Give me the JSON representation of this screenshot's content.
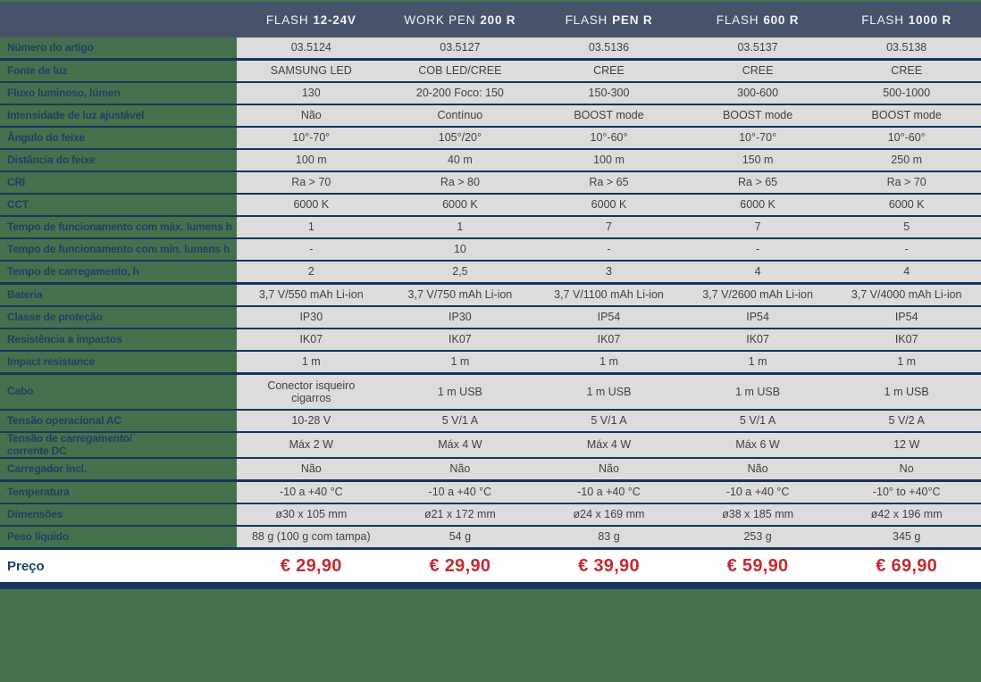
{
  "colors": {
    "page_background": "#47704D",
    "header_background": "#46536B",
    "header_text": "#F4F4F4",
    "row_label_text": "#1C4066",
    "separator_line": "#16355C",
    "cell_background": "#DCDCDC",
    "cell_text": "#404040",
    "price_background": "#FFFFFF",
    "price_text": "#C32B30"
  },
  "table": {
    "products": [
      {
        "brand": "FLASH",
        "model": "12-24V"
      },
      {
        "brand": "WORK PEN",
        "model": "200 R"
      },
      {
        "brand": "FLASH",
        "model": "PEN R"
      },
      {
        "brand": "FLASH",
        "model": "600 R"
      },
      {
        "brand": "FLASH",
        "model": "1000 R"
      }
    ],
    "rows": [
      {
        "label": "Número do artigo",
        "values": [
          "03.5124",
          "03.5127",
          "03.5136",
          "03.5137",
          "03.5138"
        ],
        "section_end": true
      },
      {
        "label": "Fonte de luz",
        "values": [
          "SAMSUNG LED",
          "COB LED/CREE",
          "CREE",
          "CREE",
          "CREE"
        ]
      },
      {
        "label": "Fluxo luminoso, lúmen",
        "values": [
          "130",
          "20-200 Foco: 150",
          "150-300",
          "300-600",
          "500-1000"
        ]
      },
      {
        "label": "Intensidade de luz ajustável",
        "values": [
          "Não",
          "Contínuo",
          "BOOST mode",
          "BOOST mode",
          "BOOST mode"
        ]
      },
      {
        "label": "Ângulo do feixe",
        "values": [
          "10°-70°",
          "105°/20°",
          "10°-60°",
          "10°-70°",
          "10°-60°"
        ]
      },
      {
        "label": "Distância do feixe",
        "values": [
          "100 m",
          "40 m",
          "100 m",
          "150 m",
          "250 m"
        ]
      },
      {
        "label": "CRI",
        "values": [
          "Ra > 70",
          "Ra > 80",
          "Ra > 65",
          "Ra > 65",
          "Ra > 70"
        ]
      },
      {
        "label": "CCT",
        "values": [
          "6000 K",
          "6000 K",
          "6000 K",
          "6000 K",
          "6000 K"
        ]
      },
      {
        "label": "Tempo de funcionamento com máx. lumens h",
        "values": [
          "1",
          "1",
          "7",
          "7",
          "5"
        ]
      },
      {
        "label": "Tempo de funcionamento com mín. lumens h",
        "values": [
          "-",
          "10",
          "-",
          "-",
          "-"
        ]
      },
      {
        "label": "Tempo de carregamento, h",
        "values": [
          "2",
          "2,5",
          "3",
          "4",
          "4"
        ],
        "section_end": true
      },
      {
        "label": "Bateria",
        "values": [
          "3,7 V/550 mAh Li-ion",
          "3,7 V/750 mAh Li-ion",
          "3,7 V/1100 mAh Li-ion",
          "3,7 V/2600 mAh Li-ion",
          "3,7 V/4000 mAh Li-ion"
        ]
      },
      {
        "label": "Classe de proteção",
        "values": [
          "IP30",
          "IP30",
          "IP54",
          "IP54",
          "IP54"
        ]
      },
      {
        "label": "Resistência a impactos",
        "values": [
          "IK07",
          "IK07",
          "IK07",
          "IK07",
          "IK07"
        ]
      },
      {
        "label": "Impact resistance",
        "values": [
          "1 m",
          "1 m",
          "1 m",
          "1 m",
          "1 m"
        ],
        "section_end": true
      },
      {
        "label": "Cabo",
        "values": [
          "Conector isqueiro\ncigarros",
          "1 m USB",
          "1 m USB",
          "1 m USB",
          "1 m USB"
        ],
        "tall": true
      },
      {
        "label": "Tensão operacional AC",
        "values": [
          "10-28 V",
          "5 V/1 A",
          "5 V/1 A",
          "5 V/1 A",
          "5 V/2 A"
        ]
      },
      {
        "label": "Tensão de carregamento/\ncorrente DC",
        "values": [
          "Máx 2 W",
          "Máx 4 W",
          "Máx 4 W",
          "Máx 6 W",
          "12 W"
        ],
        "mid": true
      },
      {
        "label": "Carregador incl.",
        "values": [
          "Não",
          "Não",
          "Não",
          "Não",
          "No"
        ],
        "section_end": true
      },
      {
        "label": "Temperatura",
        "values": [
          "-10 a +40 °C",
          "-10 a +40 °C",
          "-10 a +40 °C",
          "-10 a +40 °C",
          "-10° to +40°C"
        ]
      },
      {
        "label": "Dimensões",
        "values": [
          "ø30 x 105 mm",
          "ø21 x 172 mm",
          "ø24 x 169 mm",
          "ø38 x 185 mm",
          "ø42 x 196 mm"
        ]
      },
      {
        "label": "Peso líquido",
        "values": [
          "88 g (100 g com tampa)",
          "54 g",
          "83 g",
          "253 g",
          "345 g"
        ],
        "section_end": true
      }
    ],
    "price_row": {
      "label": "Preço",
      "values": [
        "€ 29,90",
        "€ 29,90",
        "€ 39,90",
        "€ 59,90",
        "€ 69,90"
      ]
    }
  }
}
